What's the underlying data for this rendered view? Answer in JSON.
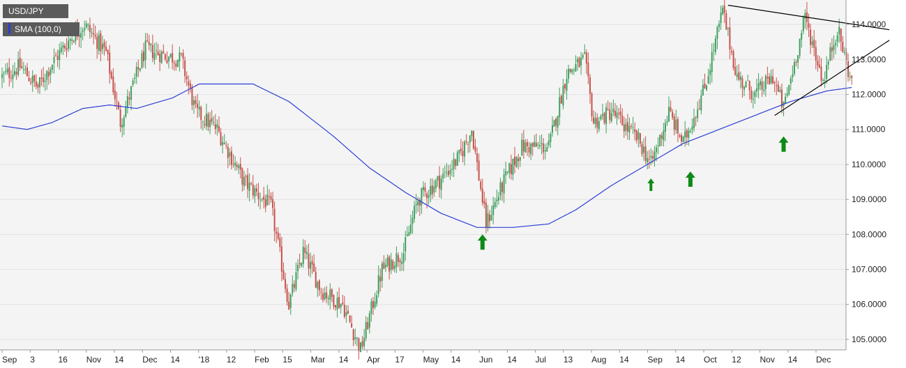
{
  "chart_data": {
    "type": "candlestick",
    "symbol_label": "USD/JPY",
    "indicator_label": "SMA (100,0)",
    "y_ticks": [
      "105.0000",
      "106.0000",
      "107.0000",
      "108.0000",
      "109.0000",
      "110.0000",
      "111.0000",
      "112.0000",
      "113.0000",
      "114.0000"
    ],
    "ylim": [
      104.7,
      114.7
    ],
    "x_ticks": [
      "Sep",
      "3",
      "16",
      "Nov",
      "14",
      "Dec",
      "14",
      "'18",
      "12",
      "Feb",
      "15",
      "Mar",
      "14",
      "Apr",
      "17",
      "May",
      "14",
      "Jun",
      "14",
      "Jul",
      "13",
      "Aug",
      "14",
      "Sep",
      "14",
      "Oct",
      "12",
      "Nov",
      "14",
      "Dec"
    ],
    "grid": true,
    "close_anchors": [
      {
        "i": 0,
        "v": 112.5
      },
      {
        "i": 10,
        "v": 112.8
      },
      {
        "i": 20,
        "v": 112.2
      },
      {
        "i": 28,
        "v": 112.9
      },
      {
        "i": 38,
        "v": 113.6
      },
      {
        "i": 46,
        "v": 114.0
      },
      {
        "i": 58,
        "v": 113.2
      },
      {
        "i": 66,
        "v": 111.2
      },
      {
        "i": 80,
        "v": 113.3
      },
      {
        "i": 92,
        "v": 113.1
      },
      {
        "i": 100,
        "v": 113.0
      },
      {
        "i": 108,
        "v": 111.5
      },
      {
        "i": 120,
        "v": 111.0
      },
      {
        "i": 135,
        "v": 109.5
      },
      {
        "i": 150,
        "v": 108.8
      },
      {
        "i": 160,
        "v": 106.0
      },
      {
        "i": 168,
        "v": 107.5
      },
      {
        "i": 178,
        "v": 106.4
      },
      {
        "i": 190,
        "v": 106.0
      },
      {
        "i": 200,
        "v": 104.7
      },
      {
        "i": 212,
        "v": 107.0
      },
      {
        "i": 224,
        "v": 107.5
      },
      {
        "i": 232,
        "v": 109.0
      },
      {
        "i": 245,
        "v": 109.6
      },
      {
        "i": 255,
        "v": 110.2
      },
      {
        "i": 262,
        "v": 111.0
      },
      {
        "i": 270,
        "v": 108.3
      },
      {
        "i": 280,
        "v": 109.5
      },
      {
        "i": 290,
        "v": 110.5
      },
      {
        "i": 305,
        "v": 110.5
      },
      {
        "i": 315,
        "v": 112.6
      },
      {
        "i": 325,
        "v": 113.0
      },
      {
        "i": 330,
        "v": 111.2
      },
      {
        "i": 340,
        "v": 111.5
      },
      {
        "i": 355,
        "v": 110.7
      },
      {
        "i": 362,
        "v": 110.0
      },
      {
        "i": 372,
        "v": 111.5
      },
      {
        "i": 380,
        "v": 110.6
      },
      {
        "i": 392,
        "v": 112.2
      },
      {
        "i": 402,
        "v": 114.4
      },
      {
        "i": 410,
        "v": 112.5
      },
      {
        "i": 420,
        "v": 112.0
      },
      {
        "i": 430,
        "v": 112.5
      },
      {
        "i": 436,
        "v": 111.6
      },
      {
        "i": 448,
        "v": 114.2
      },
      {
        "i": 458,
        "v": 112.4
      },
      {
        "i": 466,
        "v": 113.9
      },
      {
        "i": 474,
        "v": 112.3
      }
    ],
    "sma_anchors": [
      {
        "i": 0,
        "v": 111.1
      },
      {
        "i": 14,
        "v": 111.0
      },
      {
        "i": 28,
        "v": 111.2
      },
      {
        "i": 45,
        "v": 111.6
      },
      {
        "i": 60,
        "v": 111.7
      },
      {
        "i": 75,
        "v": 111.6
      },
      {
        "i": 95,
        "v": 111.9
      },
      {
        "i": 110,
        "v": 112.3
      },
      {
        "i": 125,
        "v": 112.3
      },
      {
        "i": 140,
        "v": 112.3
      },
      {
        "i": 160,
        "v": 111.8
      },
      {
        "i": 185,
        "v": 110.8
      },
      {
        "i": 205,
        "v": 109.9
      },
      {
        "i": 225,
        "v": 109.2
      },
      {
        "i": 245,
        "v": 108.6
      },
      {
        "i": 265,
        "v": 108.2
      },
      {
        "i": 285,
        "v": 108.2
      },
      {
        "i": 305,
        "v": 108.3
      },
      {
        "i": 320,
        "v": 108.7
      },
      {
        "i": 340,
        "v": 109.4
      },
      {
        "i": 360,
        "v": 110.0
      },
      {
        "i": 380,
        "v": 110.6
      },
      {
        "i": 400,
        "v": 111.0
      },
      {
        "i": 420,
        "v": 111.4
      },
      {
        "i": 440,
        "v": 111.8
      },
      {
        "i": 460,
        "v": 112.1
      },
      {
        "i": 474,
        "v": 112.2
      }
    ],
    "candle_count": 475,
    "trendlines": [
      {
        "from": {
          "i": 405,
          "v": 114.55
        },
        "to": {
          "i": 495,
          "v": 113.85
        }
      },
      {
        "from": {
          "i": 431,
          "v": 111.4
        },
        "to": {
          "i": 495,
          "v": 113.55
        }
      }
    ],
    "arrows": [
      {
        "i": 268,
        "v": 108.0,
        "size": "large"
      },
      {
        "i": 362,
        "v": 109.6,
        "size": "small"
      },
      {
        "i": 384,
        "v": 109.8,
        "size": "large"
      },
      {
        "i": 436,
        "v": 110.8,
        "size": "large"
      }
    ],
    "colors": {
      "bull": "#3f9e5e",
      "bear": "#c7514a",
      "sma": "#2b3fd6",
      "trend": "#000000",
      "arrow": "#0e8a16",
      "plot_bg": "#f4f4f4",
      "grid": "#e2e2e2"
    }
  }
}
